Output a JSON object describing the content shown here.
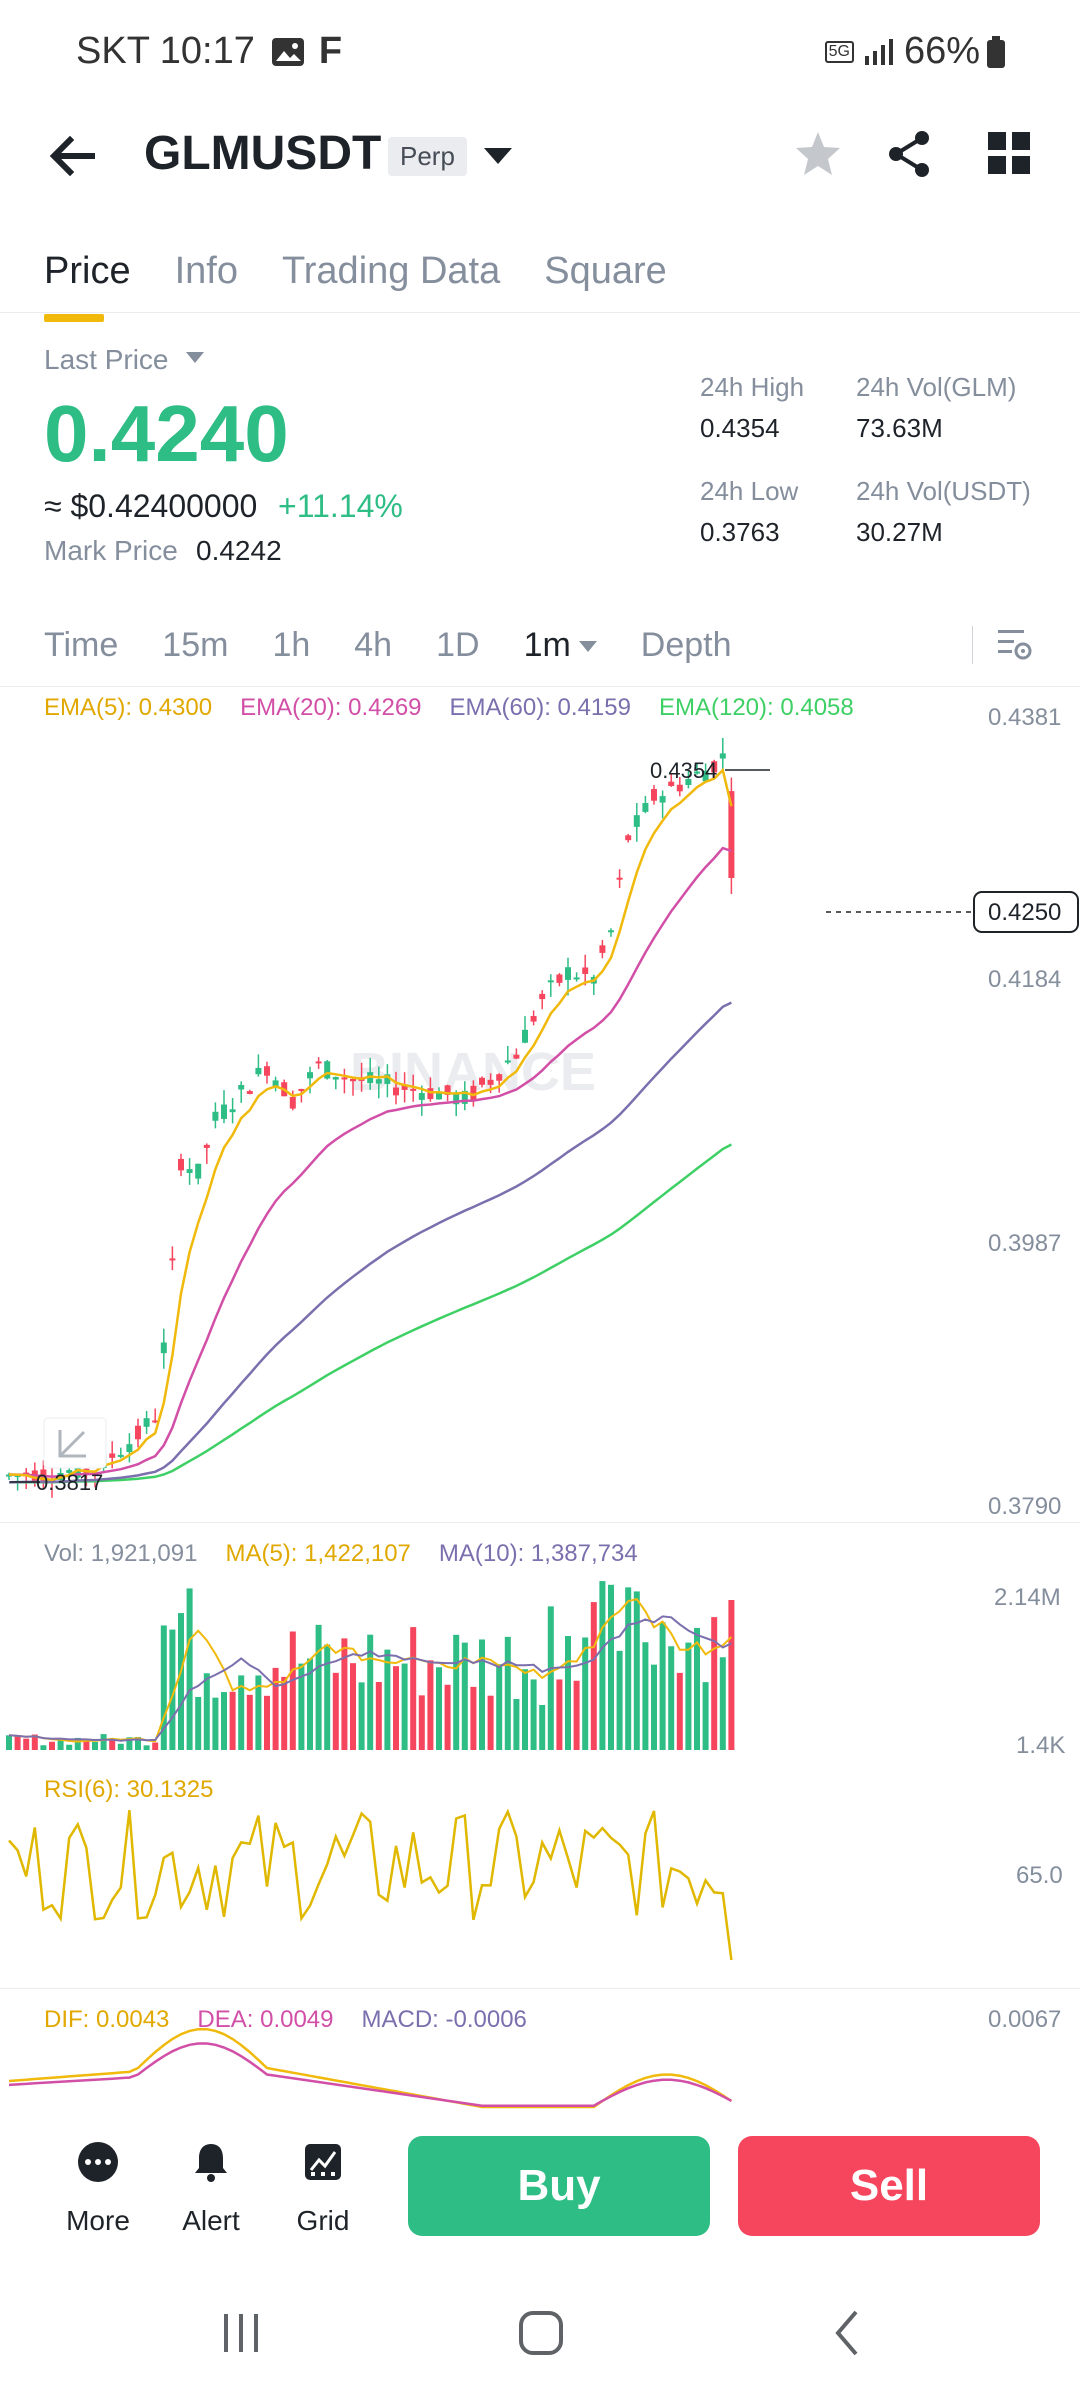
{
  "status_bar": {
    "carrier_time": "SKT 10:17",
    "f_letter": "F",
    "network_badge": "5G",
    "battery": "66%"
  },
  "header": {
    "symbol": "GLMUSDT",
    "badge": "Perp",
    "icons": [
      "back-arrow-icon",
      "star-icon",
      "share-icon",
      "grid-menu-icon"
    ]
  },
  "tabs": [
    "Price",
    "Info",
    "Trading Data",
    "Square"
  ],
  "price": {
    "last_price_label": "Last Price",
    "last_price": "0.4240",
    "usd_value": "≈ $0.42400000",
    "change": "+11.14%",
    "mark_price_label": "Mark Price",
    "mark_price": "0.4242",
    "color_up": "#2ebd85",
    "color_down": "#f6465d"
  },
  "stats": {
    "high_label": "24h High",
    "high_value": "0.4354",
    "low_label": "24h Low",
    "low_value": "0.3763",
    "vol_glm_label": "24h Vol(GLM)",
    "vol_glm_value": "73.63M",
    "vol_usdt_label": "24h Vol(USDT)",
    "vol_usdt_value": "30.27M"
  },
  "intervals": [
    "Time",
    "15m",
    "1h",
    "4h",
    "1D",
    "1m",
    "Depth"
  ],
  "selected_interval": "1m",
  "chart_indicators": {
    "ema5": "EMA(5): 0.4300",
    "ema20": "EMA(20): 0.4269",
    "ema60": "EMA(60): 0.4159",
    "ema120": "EMA(120): 0.4058",
    "colors": {
      "ema5": "#f0b90b",
      "ema20": "#d24fa7",
      "ema60": "#7b6fae",
      "ema120": "#3ed065"
    }
  },
  "price_axis": [
    "0.4381",
    "0.4184",
    "0.3987",
    "0.3790"
  ],
  "current_price_tag": "0.4250",
  "high_marker": "0.4354",
  "low_marker": "0.3817",
  "watermark": "BINANCE",
  "volume": {
    "vol_label": "Vol: 1,921,091",
    "ma5_label": "MA(5): 1,422,107",
    "ma10_label": "MA(10): 1,387,734",
    "axis": [
      "2.14M",
      "1.4K"
    ]
  },
  "rsi": {
    "label": "RSI(6): 30.1325",
    "axis": "65.0"
  },
  "macd": {
    "dif": "DIF: 0.0043",
    "dea": "DEA: 0.0049",
    "macd": "MACD: -0.0006",
    "axis": "0.0067"
  },
  "actions": {
    "more": "More",
    "alert": "Alert",
    "grid": "Grid",
    "buy": "Buy",
    "sell": "Sell"
  }
}
